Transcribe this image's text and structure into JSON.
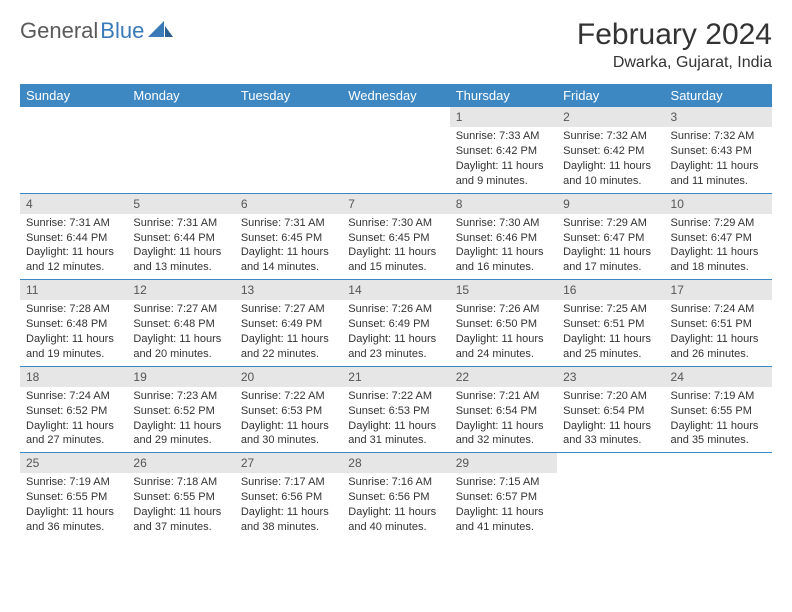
{
  "logo": {
    "word1": "General",
    "word2": "Blue"
  },
  "title": "February 2024",
  "location": "Dwarka, Gujarat, India",
  "colors": {
    "header_bg": "#3d87c3",
    "header_text": "#ffffff",
    "daynum_bg": "#e6e6e6",
    "rule": "#3d87c3",
    "body_text": "#333333",
    "logo_gray": "#5a5a5a",
    "logo_blue": "#3a7ab8"
  },
  "weekdays": [
    "Sunday",
    "Monday",
    "Tuesday",
    "Wednesday",
    "Thursday",
    "Friday",
    "Saturday"
  ],
  "weeks": [
    [
      {
        "n": "",
        "sr": "",
        "ss": "",
        "dl": ""
      },
      {
        "n": "",
        "sr": "",
        "ss": "",
        "dl": ""
      },
      {
        "n": "",
        "sr": "",
        "ss": "",
        "dl": ""
      },
      {
        "n": "",
        "sr": "",
        "ss": "",
        "dl": ""
      },
      {
        "n": "1",
        "sr": "Sunrise: 7:33 AM",
        "ss": "Sunset: 6:42 PM",
        "dl": "Daylight: 11 hours and 9 minutes."
      },
      {
        "n": "2",
        "sr": "Sunrise: 7:32 AM",
        "ss": "Sunset: 6:42 PM",
        "dl": "Daylight: 11 hours and 10 minutes."
      },
      {
        "n": "3",
        "sr": "Sunrise: 7:32 AM",
        "ss": "Sunset: 6:43 PM",
        "dl": "Daylight: 11 hours and 11 minutes."
      }
    ],
    [
      {
        "n": "4",
        "sr": "Sunrise: 7:31 AM",
        "ss": "Sunset: 6:44 PM",
        "dl": "Daylight: 11 hours and 12 minutes."
      },
      {
        "n": "5",
        "sr": "Sunrise: 7:31 AM",
        "ss": "Sunset: 6:44 PM",
        "dl": "Daylight: 11 hours and 13 minutes."
      },
      {
        "n": "6",
        "sr": "Sunrise: 7:31 AM",
        "ss": "Sunset: 6:45 PM",
        "dl": "Daylight: 11 hours and 14 minutes."
      },
      {
        "n": "7",
        "sr": "Sunrise: 7:30 AM",
        "ss": "Sunset: 6:45 PM",
        "dl": "Daylight: 11 hours and 15 minutes."
      },
      {
        "n": "8",
        "sr": "Sunrise: 7:30 AM",
        "ss": "Sunset: 6:46 PM",
        "dl": "Daylight: 11 hours and 16 minutes."
      },
      {
        "n": "9",
        "sr": "Sunrise: 7:29 AM",
        "ss": "Sunset: 6:47 PM",
        "dl": "Daylight: 11 hours and 17 minutes."
      },
      {
        "n": "10",
        "sr": "Sunrise: 7:29 AM",
        "ss": "Sunset: 6:47 PM",
        "dl": "Daylight: 11 hours and 18 minutes."
      }
    ],
    [
      {
        "n": "11",
        "sr": "Sunrise: 7:28 AM",
        "ss": "Sunset: 6:48 PM",
        "dl": "Daylight: 11 hours and 19 minutes."
      },
      {
        "n": "12",
        "sr": "Sunrise: 7:27 AM",
        "ss": "Sunset: 6:48 PM",
        "dl": "Daylight: 11 hours and 20 minutes."
      },
      {
        "n": "13",
        "sr": "Sunrise: 7:27 AM",
        "ss": "Sunset: 6:49 PM",
        "dl": "Daylight: 11 hours and 22 minutes."
      },
      {
        "n": "14",
        "sr": "Sunrise: 7:26 AM",
        "ss": "Sunset: 6:49 PM",
        "dl": "Daylight: 11 hours and 23 minutes."
      },
      {
        "n": "15",
        "sr": "Sunrise: 7:26 AM",
        "ss": "Sunset: 6:50 PM",
        "dl": "Daylight: 11 hours and 24 minutes."
      },
      {
        "n": "16",
        "sr": "Sunrise: 7:25 AM",
        "ss": "Sunset: 6:51 PM",
        "dl": "Daylight: 11 hours and 25 minutes."
      },
      {
        "n": "17",
        "sr": "Sunrise: 7:24 AM",
        "ss": "Sunset: 6:51 PM",
        "dl": "Daylight: 11 hours and 26 minutes."
      }
    ],
    [
      {
        "n": "18",
        "sr": "Sunrise: 7:24 AM",
        "ss": "Sunset: 6:52 PM",
        "dl": "Daylight: 11 hours and 27 minutes."
      },
      {
        "n": "19",
        "sr": "Sunrise: 7:23 AM",
        "ss": "Sunset: 6:52 PM",
        "dl": "Daylight: 11 hours and 29 minutes."
      },
      {
        "n": "20",
        "sr": "Sunrise: 7:22 AM",
        "ss": "Sunset: 6:53 PM",
        "dl": "Daylight: 11 hours and 30 minutes."
      },
      {
        "n": "21",
        "sr": "Sunrise: 7:22 AM",
        "ss": "Sunset: 6:53 PM",
        "dl": "Daylight: 11 hours and 31 minutes."
      },
      {
        "n": "22",
        "sr": "Sunrise: 7:21 AM",
        "ss": "Sunset: 6:54 PM",
        "dl": "Daylight: 11 hours and 32 minutes."
      },
      {
        "n": "23",
        "sr": "Sunrise: 7:20 AM",
        "ss": "Sunset: 6:54 PM",
        "dl": "Daylight: 11 hours and 33 minutes."
      },
      {
        "n": "24",
        "sr": "Sunrise: 7:19 AM",
        "ss": "Sunset: 6:55 PM",
        "dl": "Daylight: 11 hours and 35 minutes."
      }
    ],
    [
      {
        "n": "25",
        "sr": "Sunrise: 7:19 AM",
        "ss": "Sunset: 6:55 PM",
        "dl": "Daylight: 11 hours and 36 minutes."
      },
      {
        "n": "26",
        "sr": "Sunrise: 7:18 AM",
        "ss": "Sunset: 6:55 PM",
        "dl": "Daylight: 11 hours and 37 minutes."
      },
      {
        "n": "27",
        "sr": "Sunrise: 7:17 AM",
        "ss": "Sunset: 6:56 PM",
        "dl": "Daylight: 11 hours and 38 minutes."
      },
      {
        "n": "28",
        "sr": "Sunrise: 7:16 AM",
        "ss": "Sunset: 6:56 PM",
        "dl": "Daylight: 11 hours and 40 minutes."
      },
      {
        "n": "29",
        "sr": "Sunrise: 7:15 AM",
        "ss": "Sunset: 6:57 PM",
        "dl": "Daylight: 11 hours and 41 minutes."
      },
      {
        "n": "",
        "sr": "",
        "ss": "",
        "dl": ""
      },
      {
        "n": "",
        "sr": "",
        "ss": "",
        "dl": ""
      }
    ]
  ]
}
